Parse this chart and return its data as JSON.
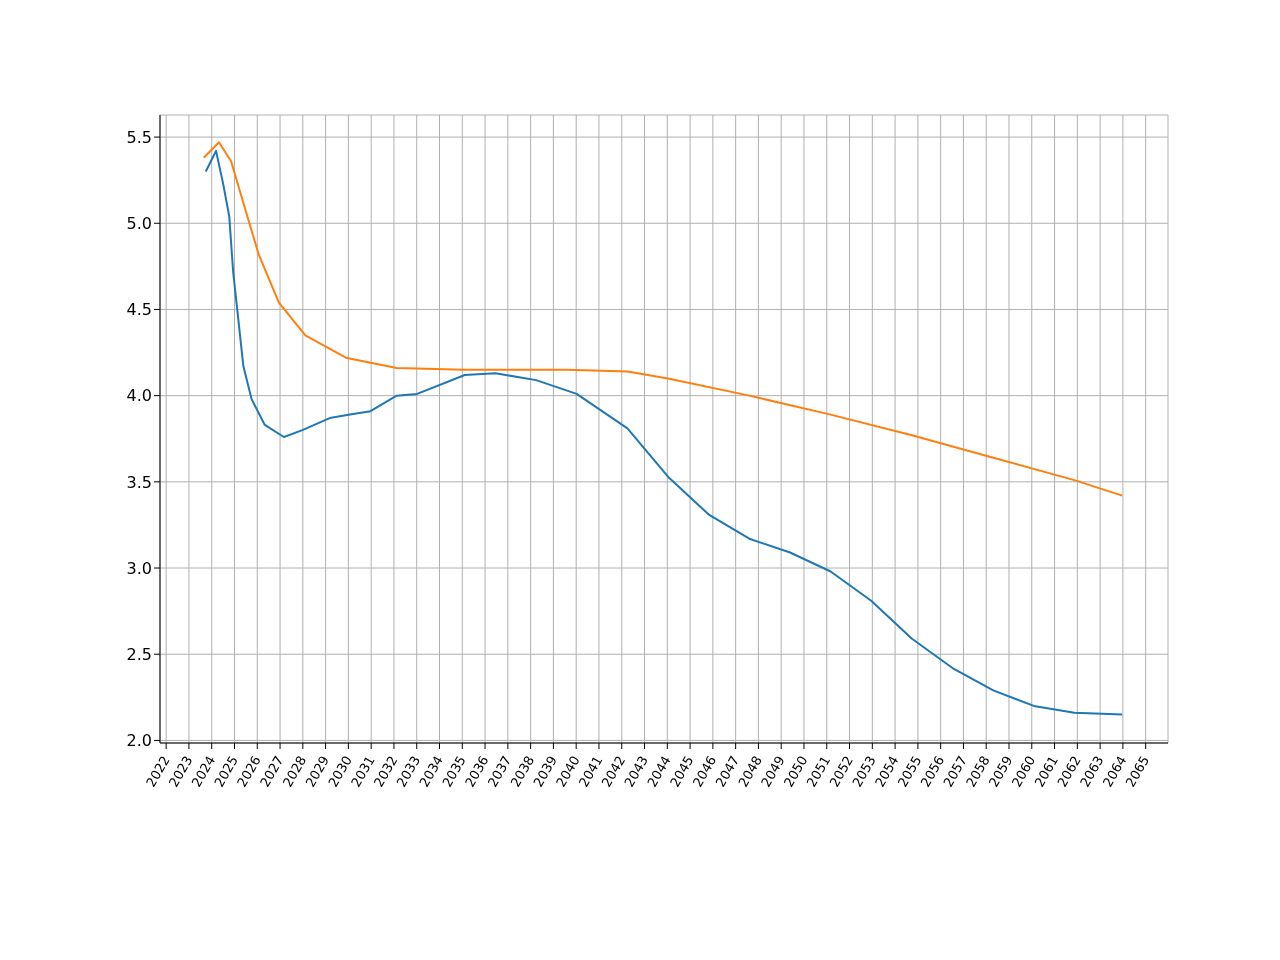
{
  "chart_data": {
    "type": "line",
    "xlim": [
      2021.73,
      2065.98
    ],
    "ylim": [
      1.985,
      5.628
    ],
    "xticks": [
      2022,
      2023,
      2024,
      2025,
      2026,
      2027,
      2028,
      2029,
      2030,
      2031,
      2032,
      2033,
      2034,
      2035,
      2036,
      2037,
      2038,
      2039,
      2040,
      2041,
      2042,
      2043,
      2044,
      2045,
      2046,
      2047,
      2048,
      2049,
      2050,
      2051,
      2052,
      2053,
      2054,
      2055,
      2056,
      2057,
      2058,
      2059,
      2060,
      2061,
      2062,
      2063,
      2064,
      2065
    ],
    "yticks": [
      {
        "value": 2,
        "label": "2.0"
      },
      {
        "value": 2.5,
        "label": "2.5"
      },
      {
        "value": 3,
        "label": "3.0"
      },
      {
        "value": 3.5,
        "label": "3.5"
      },
      {
        "value": 4,
        "label": "4.0"
      },
      {
        "value": 4.5,
        "label": "4.5"
      },
      {
        "value": 5,
        "label": "5.0"
      },
      {
        "value": 5.5,
        "label": "5.5"
      }
    ],
    "grid": true,
    "marker": "none",
    "line_style": "solid",
    "series": [
      {
        "color": "#1f77b4",
        "x": [
          2023.74,
          2024.19,
          2024.5,
          2024.77,
          2024.94,
          2025.17,
          2025.39,
          2025.75,
          2026.33,
          2027.17,
          2027.98,
          2029.18,
          2030.07,
          2030.97,
          2032.12,
          2033.02,
          2035.11,
          2036.45,
          2038.24,
          2040.02,
          2042.25,
          2044.03,
          2045.82,
          2047.6,
          2049.39,
          2051.17,
          2052.95,
          2054.74,
          2056.52,
          2058.31,
          2060.09,
          2061.87,
          2063.97
        ],
        "values": [
          5.3,
          5.42,
          5.23,
          5.04,
          4.72,
          4.44,
          4.17,
          3.98,
          3.83,
          3.76,
          3.8,
          3.87,
          3.89,
          3.91,
          4.0,
          4.01,
          4.12,
          4.13,
          4.09,
          4.01,
          3.81,
          3.53,
          3.31,
          3.17,
          3.09,
          2.98,
          2.81,
          2.59,
          2.42,
          2.29,
          2.2,
          2.16,
          2.15
        ]
      },
      {
        "color": "#ff7f0e",
        "x": [
          2023.65,
          2024.32,
          2024.85,
          2025.43,
          2026.06,
          2026.95,
          2028.11,
          2029.89,
          2032.12,
          2035.11,
          2039.57,
          2042.25,
          2044.03,
          2047.6,
          2051.17,
          2054.74,
          2058.31,
          2061.87,
          2063.97
        ],
        "values": [
          5.38,
          5.47,
          5.36,
          5.1,
          4.82,
          4.54,
          4.35,
          4.22,
          4.16,
          4.15,
          4.15,
          4.14,
          4.1,
          4.0,
          3.89,
          3.77,
          3.64,
          3.51,
          3.42
        ]
      }
    ]
  }
}
